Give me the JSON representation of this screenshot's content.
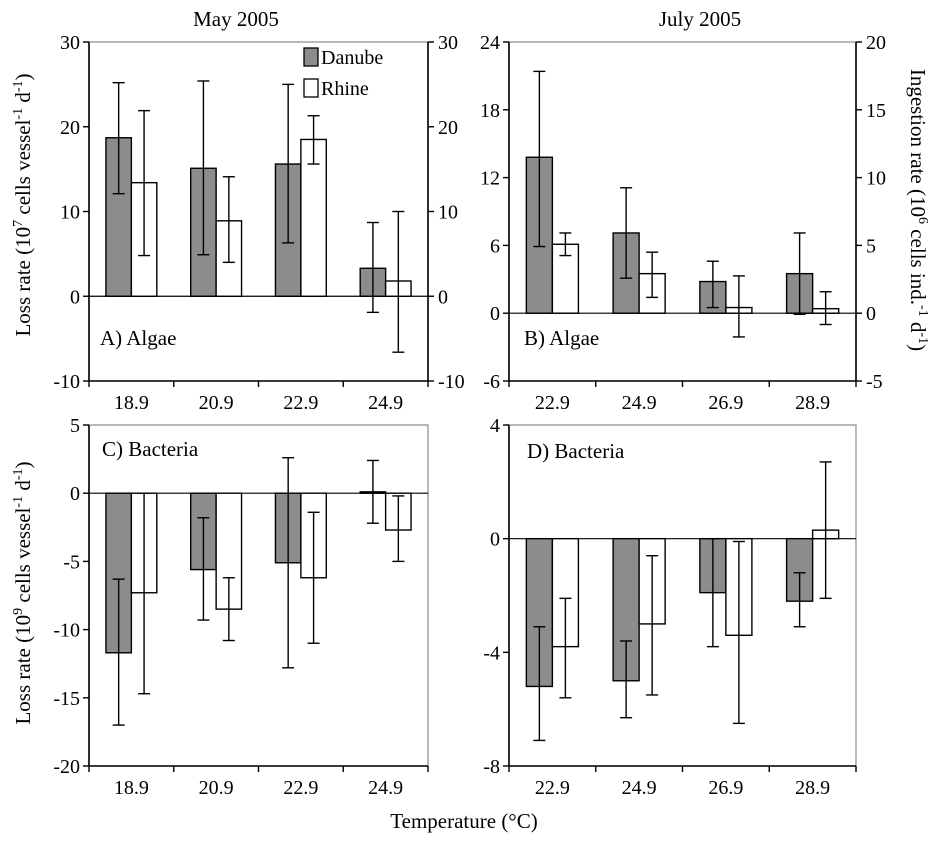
{
  "colors": {
    "danube": "#8c8c8c",
    "rhine": "#ffffff",
    "axis": "#000000",
    "frame": "#8a8a8a"
  },
  "columns": {
    "left_title": "May 2005",
    "right_title": "July 2005"
  },
  "legend": {
    "danube": "Danube",
    "rhine": "Rhine",
    "placement": "top-right of panel A"
  },
  "xlabel": "Temperature (°C)",
  "ylabels": {
    "top_left_main": "Loss rate (10",
    "top_left_sup1": "7",
    "top_left_mid": " cells vessel",
    "top_left_sup2": "-1",
    "top_left_end": " d",
    "top_left_sup3": "-1",
    "top_left_close": ")",
    "bottom_left_main": "Loss rate (10",
    "bottom_left_sup1": "9",
    "bottom_left_mid": " cells vessel",
    "bottom_left_sup2": "-1",
    "bottom_left_end": " d",
    "bottom_left_sup3": "-1",
    "bottom_left_close": ")",
    "right_main": "Ingestion rate (10",
    "right_sup1": "6",
    "right_mid": " cells ind.",
    "right_sup2": "-1",
    "right_end": " d",
    "right_sup3": "-1",
    "right_close": ")"
  },
  "chart_data": [
    {
      "panel": "A",
      "label": "A) Algae",
      "type": "bar",
      "categories": [
        "18.9",
        "20.9",
        "22.9",
        "24.9"
      ],
      "ylim": [
        -10,
        30
      ],
      "yticks": [
        -10,
        0,
        10,
        20,
        30
      ],
      "right_ylim": [
        -10,
        30
      ],
      "right_yticks": [
        -10,
        0,
        10,
        20,
        30
      ],
      "series": [
        {
          "name": "Danube",
          "values": [
            18.7,
            15.1,
            15.6,
            3.3
          ],
          "err_low": [
            12.1,
            4.9,
            6.3,
            -1.9
          ],
          "err_high": [
            25.2,
            25.4,
            25.0,
            8.7
          ]
        },
        {
          "name": "Rhine",
          "values": [
            13.4,
            8.9,
            18.5,
            1.8
          ],
          "err_low": [
            4.8,
            4.0,
            15.6,
            -6.6
          ],
          "err_high": [
            21.9,
            14.1,
            21.3,
            10.0
          ]
        }
      ]
    },
    {
      "panel": "B",
      "label": "B) Algae",
      "type": "bar",
      "categories": [
        "22.9",
        "24.9",
        "26.9",
        "28.9"
      ],
      "ylim": [
        -6,
        24
      ],
      "yticks": [
        -6,
        0,
        6,
        12,
        18,
        24
      ],
      "right_ylim": [
        -5,
        20
      ],
      "right_yticks": [
        -5,
        0,
        5,
        10,
        15,
        20
      ],
      "series": [
        {
          "name": "Danube",
          "values": [
            13.8,
            7.1,
            2.8,
            3.5
          ],
          "err_low": [
            5.9,
            3.1,
            0.5,
            -0.1
          ],
          "err_high": [
            21.4,
            11.1,
            4.6,
            7.1
          ]
        },
        {
          "name": "Rhine",
          "values": [
            6.1,
            3.5,
            0.5,
            0.4
          ],
          "err_low": [
            5.1,
            1.4,
            -2.1,
            -1.0
          ],
          "err_high": [
            7.1,
            5.4,
            3.3,
            1.9
          ]
        }
      ]
    },
    {
      "panel": "C",
      "label": "C) Bacteria",
      "type": "bar",
      "categories": [
        "18.9",
        "20.9",
        "22.9",
        "24.9"
      ],
      "ylim": [
        -20,
        5
      ],
      "yticks": [
        -20,
        -15,
        -10,
        -5,
        0,
        5
      ],
      "series": [
        {
          "name": "Danube",
          "values": [
            -11.7,
            -5.6,
            -5.1,
            0.1
          ],
          "err_low": [
            -17.0,
            -9.3,
            -12.8,
            -2.2
          ],
          "err_high": [
            -6.3,
            -1.8,
            2.6,
            2.4
          ]
        },
        {
          "name": "Rhine",
          "values": [
            -7.3,
            -8.5,
            -6.2,
            -2.7
          ],
          "err_low": [
            -14.7,
            -10.8,
            -11.0,
            -5.0
          ],
          "err_high": [
            0.0,
            -6.2,
            -1.4,
            -0.2
          ]
        }
      ]
    },
    {
      "panel": "D",
      "label": "D) Bacteria",
      "type": "bar",
      "categories": [
        "22.9",
        "24.9",
        "26.9",
        "28.9"
      ],
      "ylim": [
        -8,
        4
      ],
      "yticks": [
        -8,
        -4,
        0,
        4
      ],
      "series": [
        {
          "name": "Danube",
          "values": [
            -5.2,
            -5.0,
            -1.9,
            -2.2
          ],
          "err_low": [
            -7.1,
            -6.3,
            -3.8,
            -3.1
          ],
          "err_high": [
            -3.1,
            -3.6,
            0.0,
            -1.2
          ]
        },
        {
          "name": "Rhine",
          "values": [
            -3.8,
            -3.0,
            -3.4,
            0.3
          ],
          "err_low": [
            -5.6,
            -5.5,
            -6.5,
            -2.1
          ],
          "err_high": [
            -2.1,
            -0.6,
            -0.1,
            2.7
          ]
        }
      ]
    }
  ]
}
